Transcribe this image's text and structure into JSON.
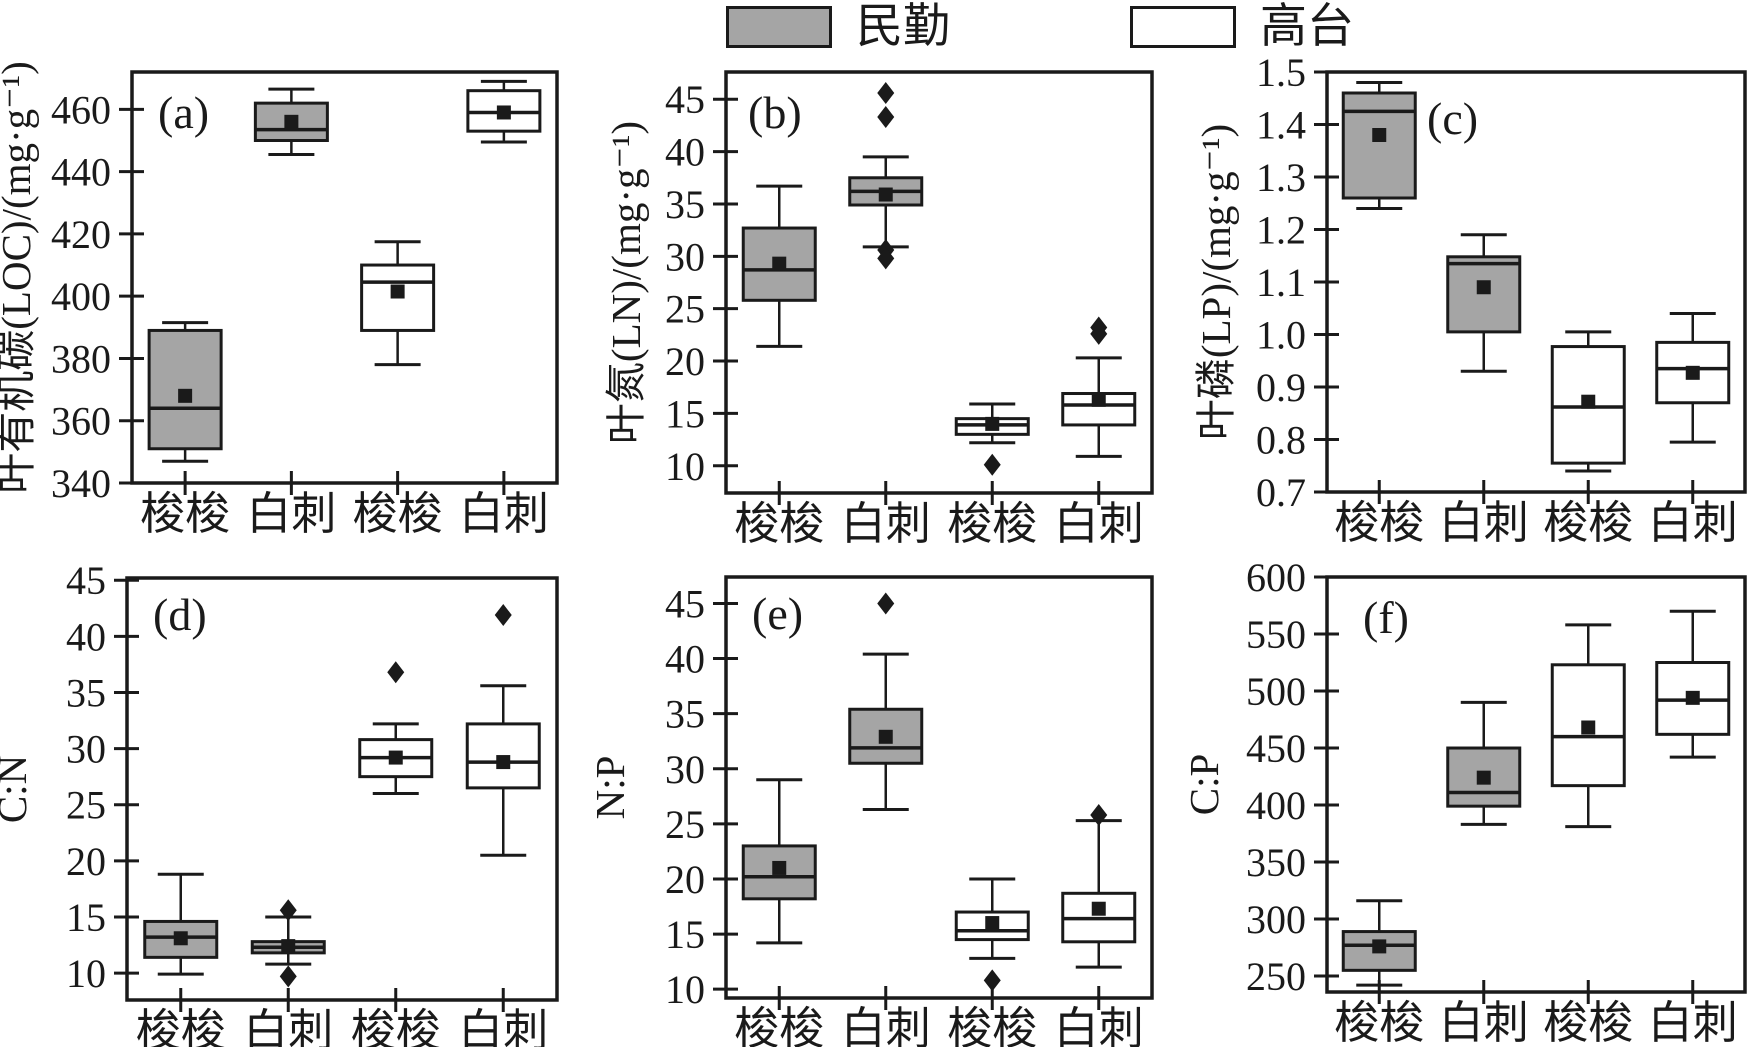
{
  "colors": {
    "line": "#1a1a1a",
    "gray_fill": "#a5a5a5",
    "white_fill": "#ffffff"
  },
  "legend": {
    "items": [
      {
        "label": "民勤",
        "fill": "#a5a5a5"
      },
      {
        "label": "高台",
        "fill": "#ffffff"
      }
    ]
  },
  "chart_data": [
    {
      "type": "box",
      "panel": "(a)",
      "ylabel": "叶有机碳(LOC)/(mg·g⁻¹)",
      "ylim": [
        340,
        472
      ],
      "yticks": [
        340,
        360,
        380,
        400,
        420,
        440,
        460
      ],
      "ytick_labels": [
        "340",
        "360",
        "380",
        "400",
        "420",
        "440",
        "460"
      ],
      "categories": [
        "梭梭",
        "白刺",
        "梭梭",
        "白刺"
      ],
      "legend_position": "top-center",
      "grid": false,
      "boxes": [
        {
          "group": "民勤",
          "category": "梭梭",
          "fill": "gray",
          "whislo": 347,
          "q1": 351,
          "med": 364,
          "q3": 389,
          "whishi": 391.5,
          "mean": 368,
          "fliers": []
        },
        {
          "group": "民勤",
          "category": "白刺",
          "fill": "gray",
          "whislo": 445.5,
          "q1": 450,
          "med": 453.5,
          "q3": 462,
          "whishi": 466.5,
          "mean": 456,
          "fliers": []
        },
        {
          "group": "高台",
          "category": "梭梭",
          "fill": "white",
          "whislo": 378,
          "q1": 389,
          "med": 404.5,
          "q3": 410,
          "whishi": 417.5,
          "mean": 401.5,
          "fliers": []
        },
        {
          "group": "高台",
          "category": "白刺",
          "fill": "white",
          "whislo": 449.5,
          "q1": 453,
          "med": 459,
          "q3": 466,
          "whishi": 469,
          "mean": 459,
          "fliers": []
        }
      ]
    },
    {
      "type": "box",
      "panel": "(b)",
      "ylabel": "叶氮(LN)/(mg·g⁻¹)",
      "ylim": [
        7.4,
        47.6
      ],
      "yticks": [
        10,
        15,
        20,
        25,
        30,
        35,
        40,
        45
      ],
      "ytick_labels": [
        "10",
        "15",
        "20",
        "25",
        "30",
        "35",
        "40",
        "45"
      ],
      "categories": [
        "梭梭",
        "白刺",
        "梭梭",
        "白刺"
      ],
      "grid": false,
      "boxes": [
        {
          "group": "民勤",
          "category": "梭梭",
          "fill": "gray",
          "whislo": 21.4,
          "q1": 25.8,
          "med": 28.7,
          "q3": 32.7,
          "whishi": 36.7,
          "mean": 29.3,
          "fliers": []
        },
        {
          "group": "民勤",
          "category": "白刺",
          "fill": "gray",
          "whislo": 30.9,
          "q1": 34.9,
          "med": 36.2,
          "q3": 37.5,
          "whishi": 39.5,
          "mean": 35.9,
          "fliers": [
            45.6,
            43.3,
            30.6,
            29.8
          ]
        },
        {
          "group": "高台",
          "category": "梭梭",
          "fill": "white",
          "whislo": 12.2,
          "q1": 13.0,
          "med": 13.9,
          "q3": 14.5,
          "whishi": 15.9,
          "mean": 14.0,
          "fliers": [
            10.1
          ]
        },
        {
          "group": "高台",
          "category": "白刺",
          "fill": "white",
          "whislo": 10.9,
          "q1": 13.9,
          "med": 15.8,
          "q3": 16.9,
          "whishi": 20.3,
          "mean": 16.3,
          "fliers": [
            23.2,
            22.6
          ]
        }
      ]
    },
    {
      "type": "box",
      "panel": "(c)",
      "ylabel": "叶磷(LP)/(mg·g⁻¹)",
      "ylim": [
        0.7,
        1.5
      ],
      "yticks": [
        0.7,
        0.8,
        0.9,
        1.0,
        1.1,
        1.2,
        1.3,
        1.4,
        1.5
      ],
      "ytick_labels": [
        "0.7",
        "0.8",
        "0.9",
        "1.0",
        "1.1",
        "1.2",
        "1.3",
        "1.4",
        "1.5"
      ],
      "categories": [
        "梭梭",
        "白刺",
        "梭梭",
        "白刺"
      ],
      "grid": false,
      "boxes": [
        {
          "group": "民勤",
          "category": "梭梭",
          "fill": "gray",
          "whislo": 1.24,
          "q1": 1.26,
          "med": 1.425,
          "q3": 1.46,
          "whishi": 1.48,
          "mean": 1.38,
          "fliers": []
        },
        {
          "group": "民勤",
          "category": "白刺",
          "fill": "gray",
          "whislo": 0.93,
          "q1": 1.005,
          "med": 1.135,
          "q3": 1.148,
          "whishi": 1.19,
          "mean": 1.09,
          "fliers": []
        },
        {
          "group": "高台",
          "category": "梭梭",
          "fill": "white",
          "whislo": 0.74,
          "q1": 0.755,
          "med": 0.862,
          "q3": 0.977,
          "whishi": 1.005,
          "mean": 0.872,
          "fliers": []
        },
        {
          "group": "高台",
          "category": "白刺",
          "fill": "white",
          "whislo": 0.795,
          "q1": 0.87,
          "med": 0.935,
          "q3": 0.985,
          "whishi": 1.04,
          "mean": 0.927,
          "fliers": []
        }
      ]
    },
    {
      "type": "box",
      "panel": "(d)",
      "ylabel": "C:N",
      "ylim": [
        7.6,
        45.2
      ],
      "yticks": [
        10,
        15,
        20,
        25,
        30,
        35,
        40,
        45
      ],
      "ytick_labels": [
        "10",
        "15",
        "20",
        "25",
        "30",
        "35",
        "40",
        "45"
      ],
      "categories": [
        "梭梭",
        "白刺",
        "梭梭",
        "白刺"
      ],
      "grid": false,
      "boxes": [
        {
          "group": "民勤",
          "category": "梭梭",
          "fill": "gray",
          "whislo": 9.9,
          "q1": 11.4,
          "med": 13.2,
          "q3": 14.6,
          "whishi": 18.8,
          "mean": 13.1,
          "fliers": []
        },
        {
          "group": "民勤",
          "category": "白刺",
          "fill": "gray",
          "whislo": 10.8,
          "q1": 11.8,
          "med": 12.3,
          "q3": 12.8,
          "whishi": 15.0,
          "mean": 12.4,
          "fliers": [
            15.6,
            9.7
          ]
        },
        {
          "group": "高台",
          "category": "梭梭",
          "fill": "white",
          "whislo": 26.0,
          "q1": 27.5,
          "med": 29.2,
          "q3": 30.8,
          "whishi": 32.2,
          "mean": 29.2,
          "fliers": [
            36.8
          ]
        },
        {
          "group": "高台",
          "category": "白刺",
          "fill": "white",
          "whislo": 20.5,
          "q1": 26.5,
          "med": 28.8,
          "q3": 32.2,
          "whishi": 35.6,
          "mean": 28.8,
          "fliers": [
            41.9
          ]
        }
      ]
    },
    {
      "type": "box",
      "panel": "(e)",
      "ylabel": "N:P",
      "ylim": [
        9.2,
        47.4
      ],
      "yticks": [
        10,
        15,
        20,
        25,
        30,
        35,
        40,
        45
      ],
      "ytick_labels": [
        "10",
        "15",
        "20",
        "25",
        "30",
        "35",
        "40",
        "45"
      ],
      "categories": [
        "梭梭",
        "白刺",
        "梭梭",
        "白刺"
      ],
      "grid": false,
      "boxes": [
        {
          "group": "民勤",
          "category": "梭梭",
          "fill": "gray",
          "whislo": 14.2,
          "q1": 18.2,
          "med": 20.2,
          "q3": 23.0,
          "whishi": 29.0,
          "mean": 21.0,
          "fliers": []
        },
        {
          "group": "民勤",
          "category": "白刺",
          "fill": "gray",
          "whislo": 26.3,
          "q1": 30.5,
          "med": 31.9,
          "q3": 35.4,
          "whishi": 40.4,
          "mean": 32.9,
          "fliers": [
            45.0
          ]
        },
        {
          "group": "高台",
          "category": "梭梭",
          "fill": "white",
          "whislo": 12.8,
          "q1": 14.5,
          "med": 15.3,
          "q3": 17.0,
          "whishi": 20.0,
          "mean": 16.0,
          "fliers": [
            10.8
          ]
        },
        {
          "group": "高台",
          "category": "白刺",
          "fill": "white",
          "whislo": 12.0,
          "q1": 14.3,
          "med": 16.4,
          "q3": 18.7,
          "whishi": 25.3,
          "mean": 17.3,
          "fliers": [
            25.8
          ]
        }
      ]
    },
    {
      "type": "box",
      "panel": "(f)",
      "ylabel": "C:P",
      "ylim": [
        236,
        600
      ],
      "yticks": [
        250,
        300,
        350,
        400,
        450,
        500,
        550,
        600
      ],
      "ytick_labels": [
        "250",
        "300",
        "350",
        "400",
        "450",
        "500",
        "550",
        "600"
      ],
      "categories": [
        "梭梭",
        "白刺",
        "梭梭",
        "白刺"
      ],
      "grid": false,
      "boxes": [
        {
          "group": "民勤",
          "category": "梭梭",
          "fill": "gray",
          "whislo": 242,
          "q1": 255,
          "med": 277,
          "q3": 289,
          "whishi": 316,
          "mean": 276,
          "fliers": []
        },
        {
          "group": "民勤",
          "category": "白刺",
          "fill": "gray",
          "whislo": 383,
          "q1": 399,
          "med": 411,
          "q3": 450,
          "whishi": 490,
          "mean": 424,
          "fliers": []
        },
        {
          "group": "高台",
          "category": "梭梭",
          "fill": "white",
          "whislo": 381,
          "q1": 417,
          "med": 460,
          "q3": 523,
          "whishi": 558,
          "mean": 468,
          "fliers": []
        },
        {
          "group": "高台",
          "category": "白刺",
          "fill": "white",
          "whislo": 442,
          "q1": 462,
          "med": 492,
          "q3": 525,
          "whishi": 570,
          "mean": 494,
          "fliers": []
        }
      ]
    }
  ]
}
